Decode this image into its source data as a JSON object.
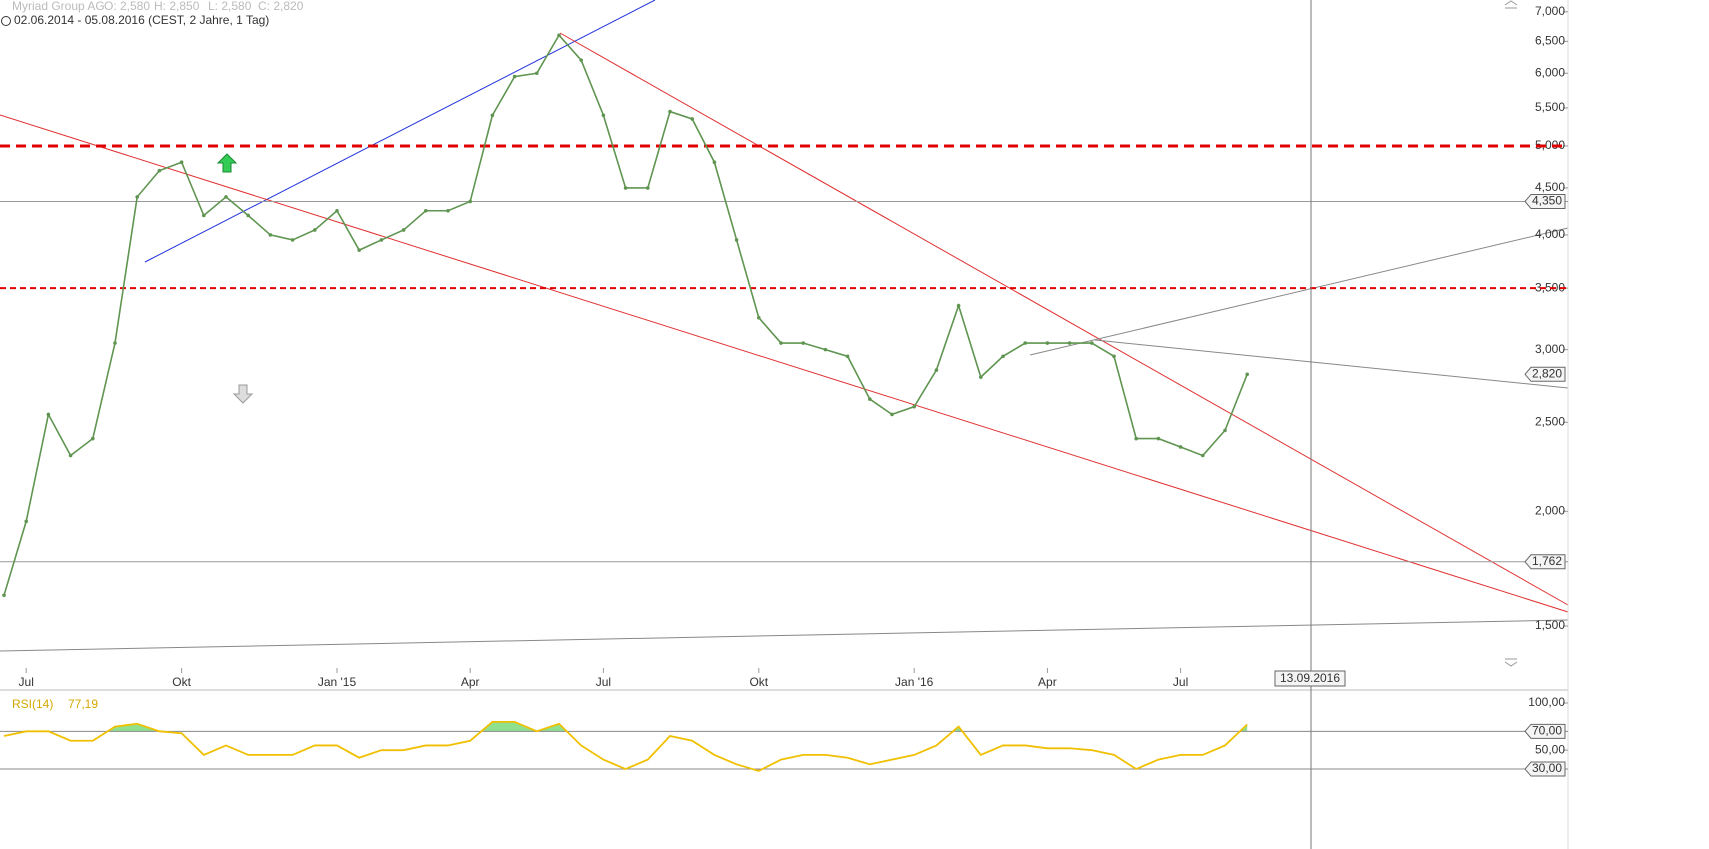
{
  "chart_data": [
    {
      "type": "line",
      "title": "Myriad Group AG",
      "ohlc": [
        "O: 2,580",
        "H: 2,850",
        "L: 2,580",
        "C: 2,820"
      ],
      "subtitle": "02.06.2014 - 05.08.2016 (CEST, 2 Jahre, 1 Tag)",
      "categories": [
        null,
        "Jul",
        null,
        null,
        null,
        null,
        null,
        null,
        "Okt",
        null,
        null,
        null,
        null,
        null,
        null,
        "Jan '15",
        null,
        null,
        null,
        null,
        null,
        "Apr",
        null,
        null,
        null,
        null,
        null,
        "Jul",
        null,
        null,
        null,
        null,
        null,
        null,
        "Okt",
        null,
        null,
        null,
        null,
        null,
        null,
        "Jan '16",
        null,
        null,
        null,
        null,
        null,
        "Apr",
        null,
        null,
        null,
        null,
        null,
        "Jul",
        null,
        null,
        null
      ],
      "values": [
        1.62,
        1.95,
        2.55,
        2.3,
        2.4,
        3.05,
        4.4,
        4.7,
        4.8,
        4.2,
        4.4,
        4.2,
        4.0,
        3.95,
        4.05,
        4.25,
        3.85,
        3.95,
        4.05,
        4.25,
        4.25,
        4.35,
        5.4,
        5.95,
        6.0,
        6.6,
        6.2,
        5.4,
        4.5,
        4.5,
        5.45,
        5.35,
        4.8,
        3.95,
        3.25,
        3.05,
        3.05,
        3.0,
        2.95,
        2.65,
        2.55,
        2.6,
        2.85,
        3.35,
        2.8,
        2.95,
        3.05,
        3.05,
        3.05,
        3.05,
        2.95,
        2.4,
        2.4,
        2.35,
        2.3,
        2.45,
        2.82
      ],
      "color": "#5f9550",
      "log_scale": true,
      "ylim": [
        1.35,
        7.21
      ],
      "yticks": [
        {
          "value": 7,
          "label": "7,000"
        },
        {
          "value": 6.5,
          "label": "6,500"
        },
        {
          "value": 6,
          "label": "6,000"
        },
        {
          "value": 5.5,
          "label": "5,500"
        },
        {
          "value": 5,
          "label": "5,000"
        },
        {
          "value": 4.5,
          "label": "4,500"
        },
        {
          "value": 4,
          "label": "4,000"
        },
        {
          "value": 3.5,
          "label": "3,500"
        },
        {
          "value": 3,
          "label": "3,000"
        },
        {
          "value": 2.5,
          "label": "2,500"
        },
        {
          "value": 2,
          "label": "2,000"
        },
        {
          "value": 1.5,
          "label": "1,500"
        }
      ],
      "hlines": [
        {
          "value": 4.35,
          "label": "4,350"
        },
        {
          "value": 1.762,
          "label": "1,762"
        }
      ],
      "last_label": "2,820",
      "dashed_levels": [
        5,
        3.5
      ],
      "dashed_color": "#e00000",
      "crosshair_label": "13.09.2016"
    },
    {
      "type": "line",
      "title": "RSI(14)",
      "last_label": "77,19",
      "values": [
        65,
        70,
        70,
        60,
        60,
        75,
        78,
        70,
        68,
        45,
        55,
        45,
        45,
        45,
        55,
        55,
        42,
        50,
        50,
        55,
        55,
        60,
        80,
        80,
        70,
        78,
        55,
        40,
        30,
        40,
        65,
        60,
        45,
        35,
        28,
        40,
        45,
        45,
        42,
        35,
        40,
        45,
        55,
        75,
        45,
        55,
        55,
        52,
        52,
        50,
        45,
        30,
        40,
        45,
        45,
        55,
        77.19
      ],
      "color": "#f0c000",
      "ylim": [
        20.5,
        108.5
      ],
      "yticks": [
        {
          "value": 100,
          "label": "100,00"
        },
        {
          "value": 70,
          "label": "70,00",
          "boxed": true
        },
        {
          "value": 50,
          "label": "50,00"
        },
        {
          "value": 30,
          "label": "30,00",
          "boxed": true
        }
      ],
      "over_color": "#8fe08f",
      "under_color": "#e8a0b8"
    }
  ]
}
